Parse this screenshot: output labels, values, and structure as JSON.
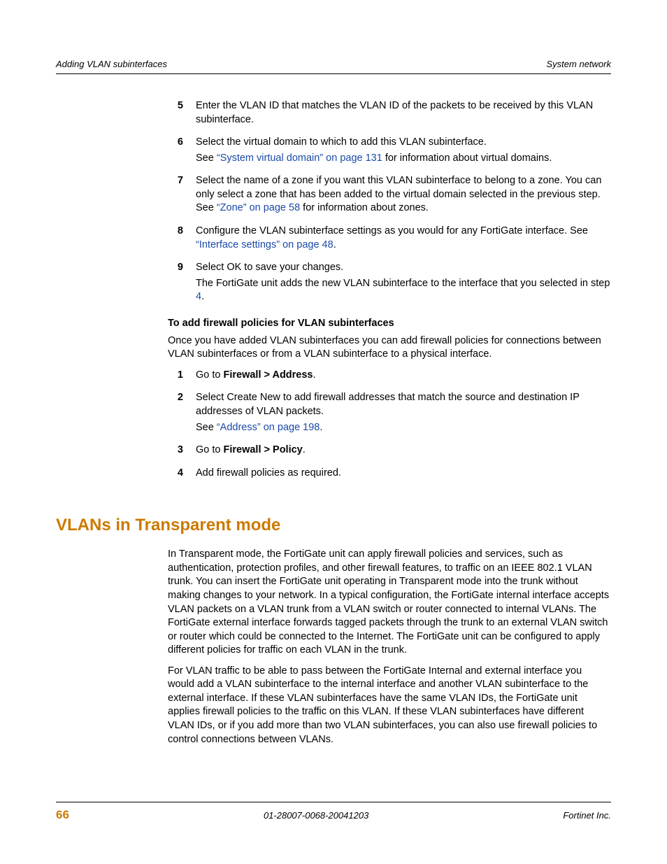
{
  "colors": {
    "heading_orange": "#cc7a00",
    "link_blue": "#1a4aa8",
    "rule": "#000000",
    "text": "#000000",
    "background": "#ffffff"
  },
  "typography": {
    "body_pt": 11,
    "h2_pt": 18,
    "running_head_pt": 10,
    "font_family": "Arial/Helvetica"
  },
  "header": {
    "left": "Adding VLAN subinterfaces",
    "right": "System network"
  },
  "steps_a": [
    {
      "n": "5",
      "lines": [
        "Enter the VLAN ID that matches the VLAN ID of the packets to be received by this VLAN subinterface."
      ]
    },
    {
      "n": "6",
      "lines": [
        "Select the virtual domain to which to add this VLAN subinterface.",
        "See <span class=\"link\">“System virtual domain” on page 131</span> for information about virtual domains."
      ]
    },
    {
      "n": "7",
      "lines": [
        "Select the name of a zone if you want this VLAN subinterface to belong to a zone. You can only select a zone that has been added to the virtual domain selected in the previous step. See <span class=\"link\">“Zone” on page 58</span> for information about zones."
      ]
    },
    {
      "n": "8",
      "lines": [
        "Configure the VLAN subinterface settings as you would for any FortiGate interface. See <span class=\"link\">“Interface settings” on page 48</span>."
      ]
    },
    {
      "n": "9",
      "lines": [
        "Select OK to save your changes.",
        "The FortiGate unit adds the new VLAN subinterface to the interface that you selected in step <span class=\"link\">4</span>."
      ]
    }
  ],
  "subhead_a": "To add firewall policies for VLAN subinterfaces",
  "intro_a": "Once you have added VLAN subinterfaces you can add firewall policies for connections between VLAN subinterfaces or from a VLAN subinterface to a physical interface.",
  "steps_b": [
    {
      "n": "1",
      "lines": [
        "Go to <b>Firewall &gt; Address</b>."
      ]
    },
    {
      "n": "2",
      "lines": [
        "Select Create New to add firewall addresses that match the source and destination IP addresses of VLAN packets.",
        "See <span class=\"link\">“Address” on page 198</span>."
      ]
    },
    {
      "n": "3",
      "lines": [
        "Go to <b>Firewall &gt; Policy</b>."
      ]
    },
    {
      "n": "4",
      "lines": [
        "Add firewall policies as required."
      ]
    }
  ],
  "section_title": "VLANs in Transparent mode",
  "section_paras": [
    "In Transparent mode, the FortiGate unit can apply firewall policies and services, such as authentication, protection profiles, and other firewall features, to traffic on an IEEE 802.1 VLAN trunk. You can insert the FortiGate unit operating in Transparent mode into the trunk without making changes to your network. In a typical configuration, the FortiGate internal interface accepts VLAN packets on a VLAN trunk from a VLAN switch or router connected to internal VLANs. The FortiGate external interface forwards tagged packets through the trunk to an external VLAN switch or router which could be connected to the Internet. The FortiGate unit can be configured to apply different policies for traffic on each VLAN in the trunk.",
    "For VLAN traffic to be able to pass between the FortiGate Internal and external interface you would add a VLAN subinterface to the internal interface and another VLAN subinterface to the external interface. If these VLAN subinterfaces have the same VLAN IDs, the FortiGate unit applies firewall policies to the traffic on this VLAN. If these VLAN subinterfaces have different VLAN IDs, or if you add more than two VLAN subinterfaces, you can also use firewall policies to control connections between VLANs."
  ],
  "footer": {
    "page": "66",
    "docid": "01-28007-0068-20041203",
    "company": "Fortinet Inc."
  }
}
